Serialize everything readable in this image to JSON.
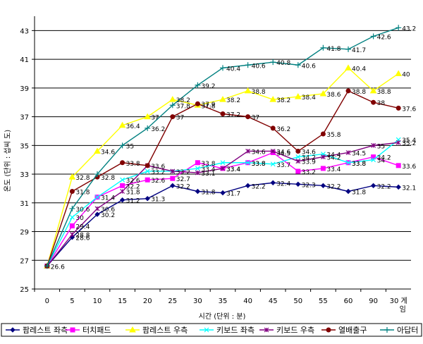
{
  "chart_data": {
    "type": "line",
    "title": "",
    "xlabel": "시간 (단위 : 분)",
    "ylabel": "온도 (단위 : 섭씨 도)",
    "ylim": [
      25,
      44
    ],
    "yticks": [
      "25",
      "27",
      "29",
      "31",
      "33",
      "35",
      "37",
      "39",
      "41",
      "43"
    ],
    "categories": [
      "0",
      "5",
      "10",
      "15",
      "20",
      "25",
      "30",
      "35",
      "40",
      "45",
      "50",
      "55",
      "60",
      "90",
      "30 게임"
    ],
    "grid": true,
    "legend_position": "bottom",
    "series": [
      {
        "name": "팜레스트 좌측",
        "color": "#000080",
        "marker": "diamond",
        "values": [
          26.6,
          28.6,
          30.2,
          31.2,
          31.3,
          32.2,
          31.8,
          31.7,
          32.2,
          32.4,
          32.3,
          32.2,
          31.8,
          32.2,
          32.1
        ],
        "labels": [
          "26.6",
          "28.6",
          "30.2",
          "31.2",
          "31.3",
          "32.2",
          "31.8",
          "31.7",
          "32.2",
          "32.4",
          "32.3",
          "32.2",
          "31.8",
          "32.2",
          "32.1"
        ]
      },
      {
        "name": "터치패드",
        "color": "#ff00ff",
        "marker": "square",
        "values": [
          26.6,
          29.4,
          31.4,
          32.2,
          32.6,
          32.7,
          33.8,
          33.4,
          33.8,
          34.5,
          33.2,
          33.4,
          33.8,
          34.2,
          33.6
        ],
        "labels": [
          "",
          "29.4",
          "31.4",
          "32.2",
          "32.6",
          "32.7",
          "33.8",
          "33.4",
          "33.8",
          "34.5",
          "33.2",
          "33.4",
          "33.8",
          "34.2",
          "33.6"
        ]
      },
      {
        "name": "팜레스트 우측",
        "color": "#ffff00",
        "marker": "triangle",
        "values": [
          26.6,
          32.8,
          34.6,
          36.4,
          37.0,
          38.2,
          37.8,
          38.2,
          38.8,
          38.2,
          38.4,
          38.6,
          40.4,
          38.8,
          40.0
        ],
        "labels": [
          "",
          "32.8",
          "34.6",
          "36.4",
          "37",
          "38.2",
          "37.8",
          "38.2",
          "38.8",
          "38.2",
          "38.4",
          "38.6",
          "40.4",
          "38.8",
          "40"
        ]
      },
      {
        "name": "키보드 좌측",
        "color": "#00ffff",
        "marker": "x",
        "values": [
          26.6,
          30.0,
          31.4,
          32.6,
          33.2,
          33.2,
          33.4,
          33.8,
          33.8,
          33.7,
          34.2,
          34.4,
          33.8,
          34.0,
          35.4
        ],
        "labels": [
          "",
          "30",
          "",
          "32.6",
          "33.2",
          "33.2",
          "33.4",
          "",
          "33.8",
          "33.7",
          "34.2",
          "34.4",
          "33.8",
          "34",
          "35.4"
        ]
      },
      {
        "name": "키보드 우측",
        "color": "#800080",
        "marker": "star",
        "values": [
          26.6,
          28.8,
          30.6,
          31.8,
          33.6,
          33.2,
          33.1,
          33.4,
          34.6,
          34.6,
          33.9,
          34.2,
          34.5,
          35.0,
          35.2
        ],
        "labels": [
          "",
          "28.8",
          "30.6",
          "31.8",
          "33.6",
          "",
          "33.1",
          "33.4",
          "34.6",
          "34.6",
          "33.9",
          "34.2",
          "34.5",
          "35",
          "35.2"
        ]
      },
      {
        "name": "열배출구",
        "color": "#800000",
        "marker": "circle",
        "values": [
          26.6,
          31.8,
          32.8,
          33.8,
          33.6,
          37.0,
          37.9,
          37.2,
          37.0,
          36.2,
          34.6,
          35.8,
          38.8,
          38.0,
          37.6
        ],
        "labels": [
          "",
          "31.8",
          "32.8",
          "33.8",
          "",
          "37",
          "37.9",
          "37.2",
          "37",
          "36.2",
          "34.6",
          "35.8",
          "38.8",
          "38",
          "37.6"
        ]
      },
      {
        "name": "아답터",
        "color": "#008080",
        "marker": "plus",
        "values": [
          26.6,
          30.6,
          33.0,
          35.0,
          36.2,
          37.8,
          39.2,
          40.4,
          40.6,
          40.8,
          40.6,
          41.8,
          41.7,
          42.6,
          43.2
        ],
        "labels": [
          "",
          "30.6",
          "",
          "35",
          "36.2",
          "37.8",
          "39.2",
          "40.4",
          "40.6",
          "40.8",
          "40.6",
          "41.8",
          "41.7",
          "42.6",
          "43.2"
        ]
      }
    ]
  }
}
